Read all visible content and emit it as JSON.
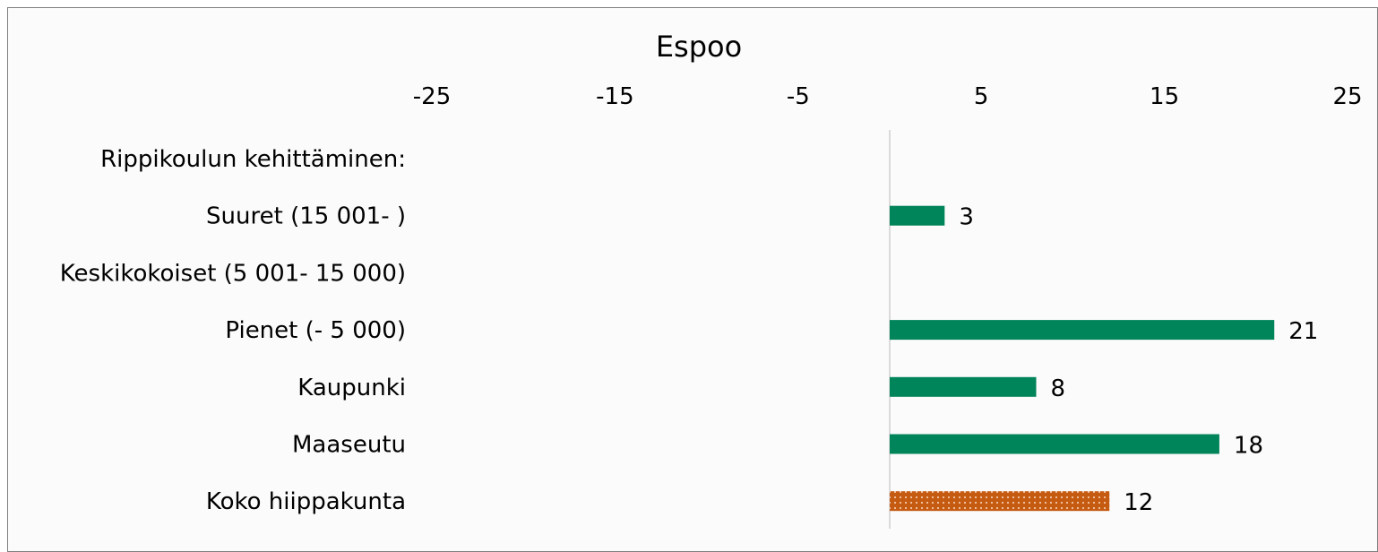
{
  "chart_data": {
    "type": "bar",
    "orientation": "horizontal",
    "title": "Espoo",
    "xlim": [
      -25,
      25
    ],
    "x_ticks": [
      -25,
      -15,
      -5,
      5,
      15,
      25
    ],
    "x_axis_position": "top",
    "grid": false,
    "legend": "none",
    "categories": [
      "Rippikoulun kehittäminen:",
      "Suuret (15 001- )",
      "Keskikokoiset (5 001- 15 000)",
      "Pienet (- 5 000)",
      "Kaupunki",
      "Maaseutu",
      "Koko hiippakunta"
    ],
    "values": [
      null,
      3,
      null,
      21,
      8,
      18,
      12
    ],
    "bar_styles": [
      "solid",
      "solid",
      "solid",
      "solid",
      "solid",
      "solid",
      "dotted"
    ],
    "colors": {
      "bar": "#00845a",
      "highlight": "#c55a11",
      "highlight_dots": "#f4c8a8",
      "axis": "#d0d0d0"
    }
  }
}
